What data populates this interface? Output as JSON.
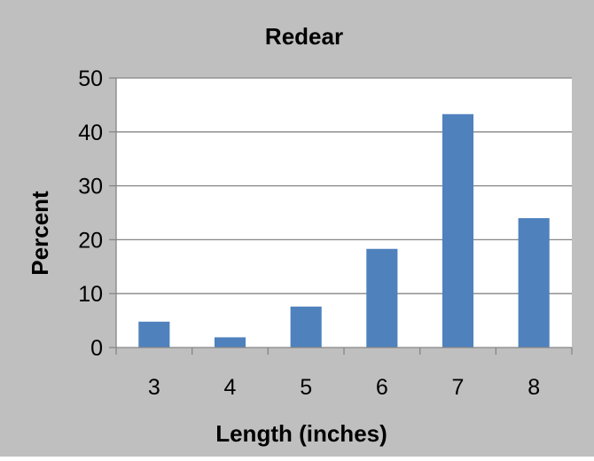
{
  "chart_data": {
    "type": "bar",
    "title": "Redear",
    "xlabel": "Length (inches)",
    "ylabel": "Percent",
    "categories": [
      "3",
      "4",
      "5",
      "6",
      "7",
      "8"
    ],
    "values": [
      4.8,
      1.9,
      7.6,
      18.3,
      43.3,
      24.0
    ],
    "ylim": [
      0,
      50
    ],
    "yticks": [
      0,
      10,
      20,
      30,
      40,
      50
    ],
    "grid": true,
    "legend": "none",
    "colors": {
      "bar": "#4F81BD",
      "background": "#BFBFBF",
      "plot_area": "#FFFFFF",
      "gridline": "#868686",
      "axis": "#868686",
      "text": "#000000"
    }
  }
}
